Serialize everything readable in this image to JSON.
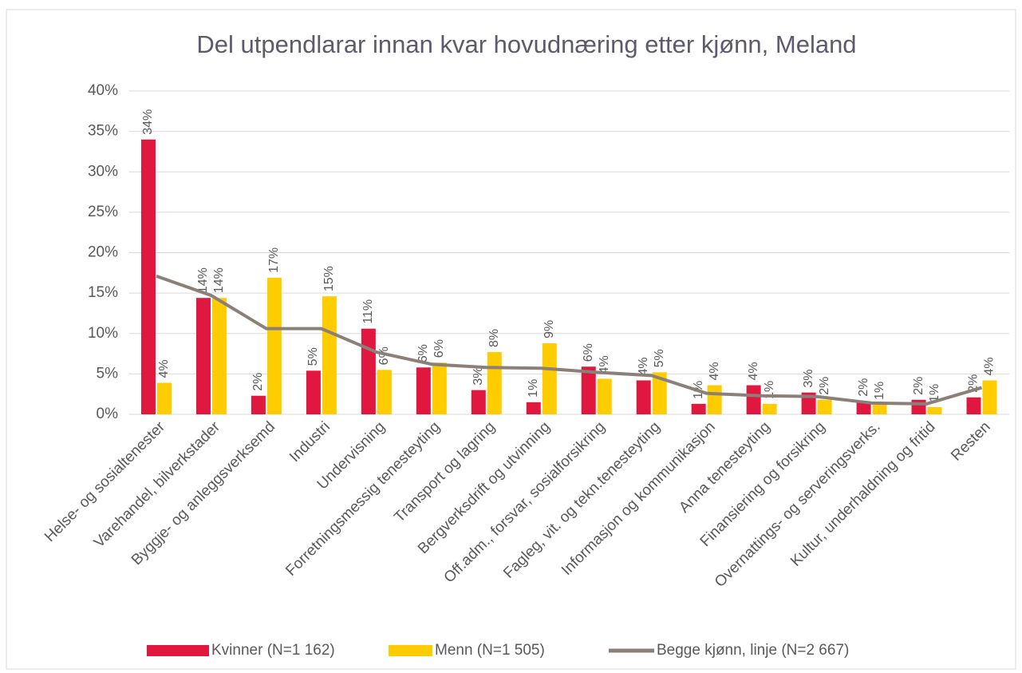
{
  "chart_data": {
    "type": "bar",
    "title": "Del utpendlarar innan kvar hovudnæring etter kjønn, Meland",
    "categories": [
      "Helse- og sosialtenester",
      "Varehandel, bilverkstader",
      "Byggje- og anleggsverksemd",
      "Industri",
      "Undervisning",
      "Forretningsmessig tenesteyting",
      "Transport og lagring",
      "Bergverksdrift og utvinning",
      "Off.adm., forsvar, sosialforsikring",
      "Fagleg, vit. og tekn.tenesteyting",
      "Informasjon og kommunikasjon",
      "Anna tenesteyting",
      "Finansiering og forsikring",
      "Overnattings- og serveringsverks.",
      "Kultur, underhaldning og fritid",
      "Resten"
    ],
    "series": [
      {
        "name": "Kvinner (N=1 162)",
        "type": "bar",
        "color": "#e0173e",
        "values": [
          34,
          14.4,
          2.3,
          5.4,
          10.6,
          5.8,
          3.0,
          1.5,
          5.9,
          4.2,
          1.3,
          3.6,
          2.7,
          1.6,
          1.8,
          2.1
        ],
        "value_labels": [
          "34%",
          "14%",
          "2%",
          "5%",
          "11%",
          "6%",
          "3%",
          "1%",
          "6%",
          "4%",
          "1%",
          "4%",
          "3%",
          "2%",
          "2%",
          "2%"
        ]
      },
      {
        "name": "Menn (N=1 505)",
        "type": "bar",
        "color": "#ffcc00",
        "values": [
          3.9,
          14.4,
          16.9,
          14.6,
          5.5,
          6.4,
          7.7,
          8.8,
          4.4,
          5.2,
          3.6,
          1.3,
          1.8,
          1.2,
          0.9,
          4.2
        ],
        "value_labels": [
          "4%",
          "14%",
          "17%",
          "15%",
          "6%",
          "6%",
          "8%",
          "9%",
          "4%",
          "5%",
          "4%",
          "1%",
          "2%",
          "1%",
          "1%",
          "4%"
        ]
      },
      {
        "name": "Begge kjønn, linje (N=2 667)",
        "type": "line",
        "color": "#8a8079",
        "values": [
          17.1,
          14.7,
          10.6,
          10.6,
          7.7,
          6.2,
          5.8,
          5.7,
          5.2,
          4.8,
          2.6,
          2.3,
          2.2,
          1.4,
          1.3,
          3.3
        ]
      }
    ],
    "ylim": [
      0,
      40
    ],
    "yticks": [
      {
        "value": 0,
        "label": "0%"
      },
      {
        "value": 5,
        "label": "5%"
      },
      {
        "value": 10,
        "label": "10%"
      },
      {
        "value": 15,
        "label": "15%"
      },
      {
        "value": 20,
        "label": "20%"
      },
      {
        "value": 25,
        "label": "25%"
      },
      {
        "value": 30,
        "label": "30%"
      },
      {
        "value": 35,
        "label": "35%"
      },
      {
        "value": 40,
        "label": "40%"
      }
    ],
    "grid": true,
    "legend": "bottom"
  }
}
